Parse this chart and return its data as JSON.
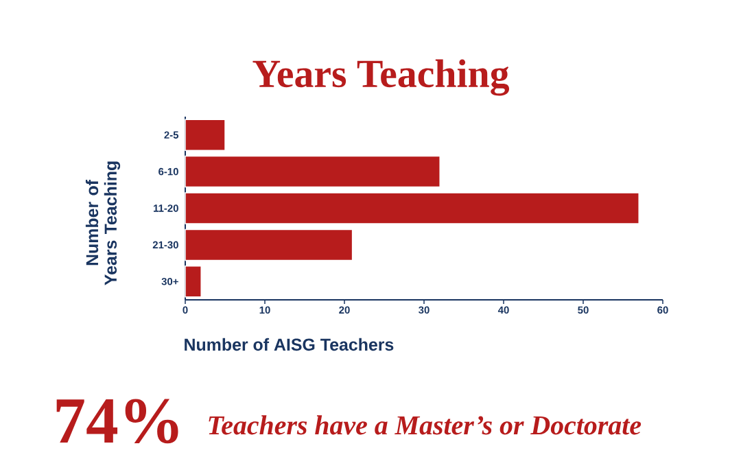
{
  "chart_data": {
    "type": "bar",
    "orientation": "horizontal",
    "title": "Years Teaching",
    "xlabel": "Number of AISG Teachers",
    "ylabel": "Number of Years Teaching",
    "categories": [
      "2-5",
      "6-10",
      "11-20",
      "21-30",
      "30+"
    ],
    "values": [
      5,
      32,
      57,
      21,
      2
    ],
    "color": "#b71c1c",
    "xlim": [
      0,
      60
    ],
    "xticks": [
      0,
      10,
      20,
      30,
      40,
      50,
      60
    ],
    "annotations": [
      "74%",
      "Teachers have a Master’s or Doctorate"
    ]
  }
}
